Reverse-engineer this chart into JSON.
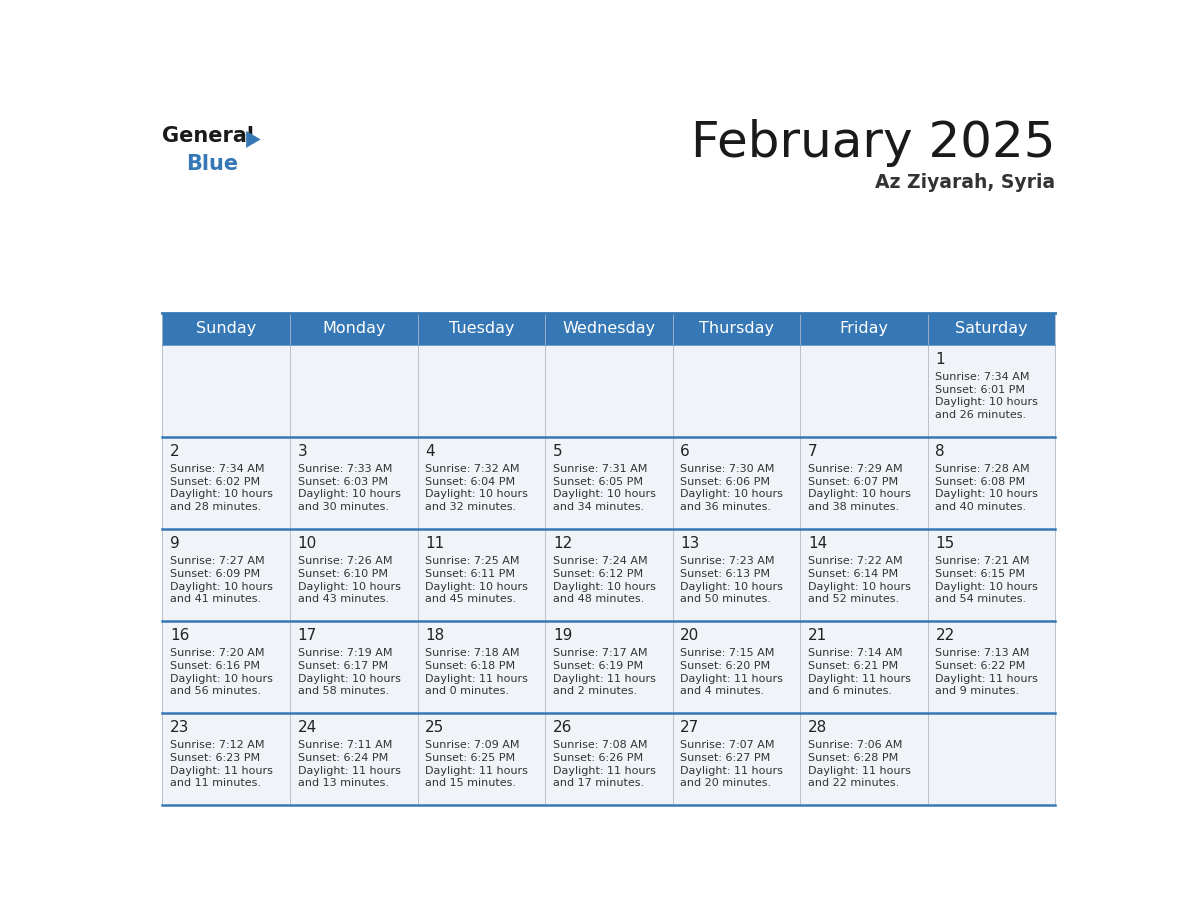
{
  "title": "February 2025",
  "subtitle": "Az Ziyarah, Syria",
  "header_color": "#3578b5",
  "header_text_color": "#ffffff",
  "days_of_week": [
    "Sunday",
    "Monday",
    "Tuesday",
    "Wednesday",
    "Thursday",
    "Friday",
    "Saturday"
  ],
  "cell_bg_color": "#f0f4f8",
  "day_number_color": "#222222",
  "info_text_color": "#333333",
  "border_color": "#3578b5",
  "title_color": "#1a1a1a",
  "subtitle_color": "#333333",
  "logo_general_color": "#1a1a1a",
  "logo_blue_color": "#3578b5",
  "logo_triangle_color": "#3578b5",
  "calendar_data": [
    [
      null,
      null,
      null,
      null,
      null,
      null,
      {
        "day": 1,
        "sunrise": "7:34 AM",
        "sunset": "6:01 PM",
        "daylight_line1": "Daylight: 10 hours",
        "daylight_line2": "and 26 minutes."
      }
    ],
    [
      {
        "day": 2,
        "sunrise": "7:34 AM",
        "sunset": "6:02 PM",
        "daylight_line1": "Daylight: 10 hours",
        "daylight_line2": "and 28 minutes."
      },
      {
        "day": 3,
        "sunrise": "7:33 AM",
        "sunset": "6:03 PM",
        "daylight_line1": "Daylight: 10 hours",
        "daylight_line2": "and 30 minutes."
      },
      {
        "day": 4,
        "sunrise": "7:32 AM",
        "sunset": "6:04 PM",
        "daylight_line1": "Daylight: 10 hours",
        "daylight_line2": "and 32 minutes."
      },
      {
        "day": 5,
        "sunrise": "7:31 AM",
        "sunset": "6:05 PM",
        "daylight_line1": "Daylight: 10 hours",
        "daylight_line2": "and 34 minutes."
      },
      {
        "day": 6,
        "sunrise": "7:30 AM",
        "sunset": "6:06 PM",
        "daylight_line1": "Daylight: 10 hours",
        "daylight_line2": "and 36 minutes."
      },
      {
        "day": 7,
        "sunrise": "7:29 AM",
        "sunset": "6:07 PM",
        "daylight_line1": "Daylight: 10 hours",
        "daylight_line2": "and 38 minutes."
      },
      {
        "day": 8,
        "sunrise": "7:28 AM",
        "sunset": "6:08 PM",
        "daylight_line1": "Daylight: 10 hours",
        "daylight_line2": "and 40 minutes."
      }
    ],
    [
      {
        "day": 9,
        "sunrise": "7:27 AM",
        "sunset": "6:09 PM",
        "daylight_line1": "Daylight: 10 hours",
        "daylight_line2": "and 41 minutes."
      },
      {
        "day": 10,
        "sunrise": "7:26 AM",
        "sunset": "6:10 PM",
        "daylight_line1": "Daylight: 10 hours",
        "daylight_line2": "and 43 minutes."
      },
      {
        "day": 11,
        "sunrise": "7:25 AM",
        "sunset": "6:11 PM",
        "daylight_line1": "Daylight: 10 hours",
        "daylight_line2": "and 45 minutes."
      },
      {
        "day": 12,
        "sunrise": "7:24 AM",
        "sunset": "6:12 PM",
        "daylight_line1": "Daylight: 10 hours",
        "daylight_line2": "and 48 minutes."
      },
      {
        "day": 13,
        "sunrise": "7:23 AM",
        "sunset": "6:13 PM",
        "daylight_line1": "Daylight: 10 hours",
        "daylight_line2": "and 50 minutes."
      },
      {
        "day": 14,
        "sunrise": "7:22 AM",
        "sunset": "6:14 PM",
        "daylight_line1": "Daylight: 10 hours",
        "daylight_line2": "and 52 minutes."
      },
      {
        "day": 15,
        "sunrise": "7:21 AM",
        "sunset": "6:15 PM",
        "daylight_line1": "Daylight: 10 hours",
        "daylight_line2": "and 54 minutes."
      }
    ],
    [
      {
        "day": 16,
        "sunrise": "7:20 AM",
        "sunset": "6:16 PM",
        "daylight_line1": "Daylight: 10 hours",
        "daylight_line2": "and 56 minutes."
      },
      {
        "day": 17,
        "sunrise": "7:19 AM",
        "sunset": "6:17 PM",
        "daylight_line1": "Daylight: 10 hours",
        "daylight_line2": "and 58 minutes."
      },
      {
        "day": 18,
        "sunrise": "7:18 AM",
        "sunset": "6:18 PM",
        "daylight_line1": "Daylight: 11 hours",
        "daylight_line2": "and 0 minutes."
      },
      {
        "day": 19,
        "sunrise": "7:17 AM",
        "sunset": "6:19 PM",
        "daylight_line1": "Daylight: 11 hours",
        "daylight_line2": "and 2 minutes."
      },
      {
        "day": 20,
        "sunrise": "7:15 AM",
        "sunset": "6:20 PM",
        "daylight_line1": "Daylight: 11 hours",
        "daylight_line2": "and 4 minutes."
      },
      {
        "day": 21,
        "sunrise": "7:14 AM",
        "sunset": "6:21 PM",
        "daylight_line1": "Daylight: 11 hours",
        "daylight_line2": "and 6 minutes."
      },
      {
        "day": 22,
        "sunrise": "7:13 AM",
        "sunset": "6:22 PM",
        "daylight_line1": "Daylight: 11 hours",
        "daylight_line2": "and 9 minutes."
      }
    ],
    [
      {
        "day": 23,
        "sunrise": "7:12 AM",
        "sunset": "6:23 PM",
        "daylight_line1": "Daylight: 11 hours",
        "daylight_line2": "and 11 minutes."
      },
      {
        "day": 24,
        "sunrise": "7:11 AM",
        "sunset": "6:24 PM",
        "daylight_line1": "Daylight: 11 hours",
        "daylight_line2": "and 13 minutes."
      },
      {
        "day": 25,
        "sunrise": "7:09 AM",
        "sunset": "6:25 PM",
        "daylight_line1": "Daylight: 11 hours",
        "daylight_line2": "and 15 minutes."
      },
      {
        "day": 26,
        "sunrise": "7:08 AM",
        "sunset": "6:26 PM",
        "daylight_line1": "Daylight: 11 hours",
        "daylight_line2": "and 17 minutes."
      },
      {
        "day": 27,
        "sunrise": "7:07 AM",
        "sunset": "6:27 PM",
        "daylight_line1": "Daylight: 11 hours",
        "daylight_line2": "and 20 minutes."
      },
      {
        "day": 28,
        "sunrise": "7:06 AM",
        "sunset": "6:28 PM",
        "daylight_line1": "Daylight: 11 hours",
        "daylight_line2": "and 22 minutes."
      },
      null
    ]
  ]
}
